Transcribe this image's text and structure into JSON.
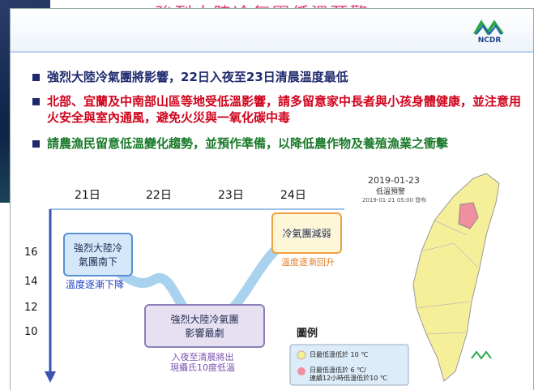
{
  "title": "強烈大陸冷氣團低溫預警",
  "logo": "NCDR",
  "bullets": [
    "強烈大陸冷氣團將影響，22日入夜至23日清晨溫度最低",
    "北部、宜蘭及中南部山區等地受低溫影響，請多留意家中長者與小孩身體健康，並注意用火安全與室內通風，避免火災與一氧化碳中毒",
    "請農漁民留意低溫變化趨勢，並預作準備，以降低農作物及養殖漁業之衝擊"
  ],
  "timeline": {
    "days": [
      "21日",
      "22日",
      "23日",
      "24日"
    ],
    "temperatures": [
      16,
      14,
      12,
      10
    ],
    "stages": [
      {
        "label": [
          "強烈大陸冷",
          "氣團南下"
        ],
        "note": [
          "溫度逐漸下降"
        ]
      },
      {
        "label": [
          "強烈大陸冷氣團",
          "影響最劇"
        ],
        "note": [
          "入夜至清晨將出",
          "現攝氏10度低溫"
        ]
      },
      {
        "label": [
          "冷氣團減弱"
        ],
        "note": [
          "溫度逐漸回升"
        ]
      }
    ]
  },
  "map": {
    "date": "2019-01-23",
    "subtitle": "低溫預警",
    "issued": "2019-01-21 05:00 發布",
    "legend_title": "圖例",
    "legend": [
      [
        "日最低溫低於 10 ℃"
      ],
      [
        "日最低溫低於 6 ℃/",
        "連續12小時低溫低於10 ℃"
      ]
    ]
  }
}
